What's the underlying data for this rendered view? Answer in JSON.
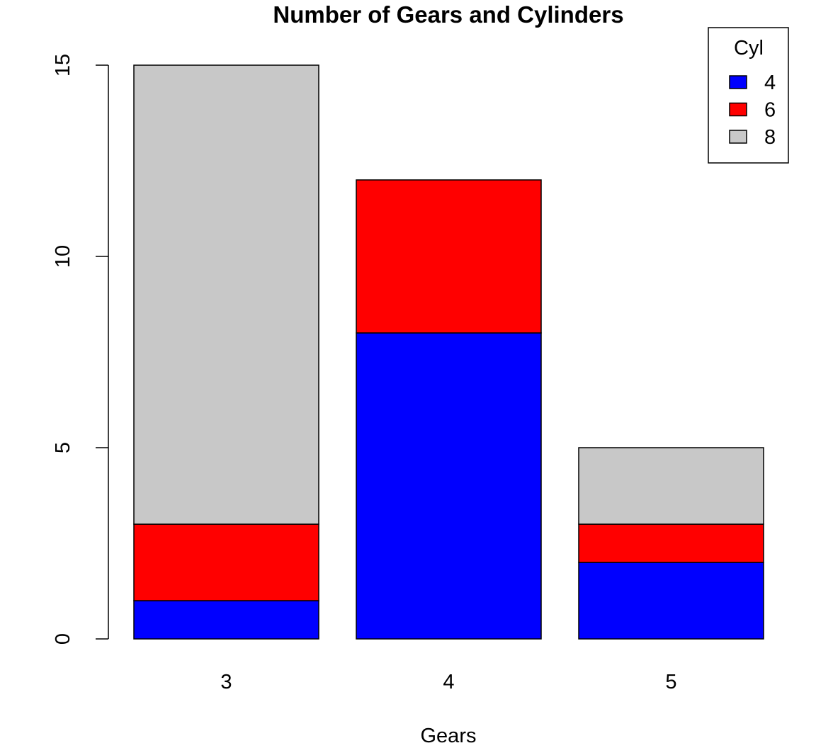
{
  "chart_data": {
    "type": "bar",
    "stacked": true,
    "title": "Number of Gears and Cylinders",
    "xlabel": "Gears",
    "ylabel": "",
    "categories": [
      "3",
      "4",
      "5"
    ],
    "series": [
      {
        "name": "4",
        "values": [
          1,
          8,
          2
        ],
        "color": "#0000FF"
      },
      {
        "name": "6",
        "values": [
          2,
          4,
          1
        ],
        "color": "#FF0000"
      },
      {
        "name": "8",
        "values": [
          12,
          0,
          2
        ],
        "color": "#C8C8C8"
      }
    ],
    "ylim": [
      0,
      15
    ],
    "yticks": [
      0,
      5,
      10,
      15
    ],
    "yticklabels": [
      "0",
      "5",
      "10",
      "15"
    ],
    "legend": {
      "title": "Cyl",
      "placement": "top-right"
    },
    "grid": false
  }
}
